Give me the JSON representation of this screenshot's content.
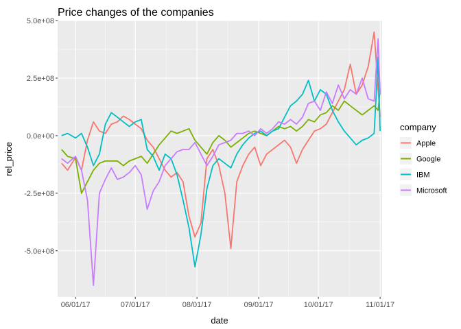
{
  "chart_data": {
    "type": "line",
    "title": "Price changes of the companies",
    "xlabel": "date",
    "ylabel": "rel_price",
    "xlim": [
      "2017-05-23",
      "2017-11-02"
    ],
    "ylim": [
      -700000000,
      500000000
    ],
    "x_ticks": [
      "06/01/17",
      "07/01/17",
      "08/01/17",
      "09/01/17",
      "10/01/17",
      "11/01/17"
    ],
    "y_ticks": [
      "5.0e+08",
      "2.5e+08",
      "0.0e+00",
      "-2.5e+08",
      "-5.0e+08"
    ],
    "y_tick_values": [
      500000000,
      250000000,
      0,
      -250000000,
      -500000000
    ],
    "grid": true,
    "legend": {
      "title": "company",
      "position": "right"
    },
    "colors": {
      "panel": "#ebebeb",
      "grid": "#ffffff"
    },
    "series": [
      {
        "name": "Apple",
        "color": "#F8766D",
        "points": [
          [
            "2017-05-25",
            -120000000
          ],
          [
            "2017-05-28",
            -150000000
          ],
          [
            "2017-06-01",
            -95000000
          ],
          [
            "2017-06-04",
            -150000000
          ],
          [
            "2017-06-07",
            -20000000
          ],
          [
            "2017-06-10",
            60000000
          ],
          [
            "2017-06-13",
            20000000
          ],
          [
            "2017-06-16",
            10000000
          ],
          [
            "2017-06-19",
            50000000
          ],
          [
            "2017-06-22",
            60000000
          ],
          [
            "2017-06-25",
            85000000
          ],
          [
            "2017-06-28",
            70000000
          ],
          [
            "2017-07-01",
            50000000
          ],
          [
            "2017-07-04",
            30000000
          ],
          [
            "2017-07-07",
            -20000000
          ],
          [
            "2017-07-10",
            -50000000
          ],
          [
            "2017-07-13",
            -100000000
          ],
          [
            "2017-07-16",
            -150000000
          ],
          [
            "2017-07-19",
            -180000000
          ],
          [
            "2017-07-22",
            -160000000
          ],
          [
            "2017-07-25",
            -200000000
          ],
          [
            "2017-07-28",
            -350000000
          ],
          [
            "2017-07-31",
            -440000000
          ],
          [
            "2017-08-03",
            -380000000
          ],
          [
            "2017-08-06",
            -100000000
          ],
          [
            "2017-08-09",
            -60000000
          ],
          [
            "2017-08-12",
            -130000000
          ],
          [
            "2017-08-15",
            -250000000
          ],
          [
            "2017-08-18",
            -490000000
          ],
          [
            "2017-08-21",
            -200000000
          ],
          [
            "2017-08-24",
            -130000000
          ],
          [
            "2017-08-27",
            -80000000
          ],
          [
            "2017-08-30",
            -50000000
          ],
          [
            "2017-09-02",
            -130000000
          ],
          [
            "2017-09-05",
            -80000000
          ],
          [
            "2017-09-08",
            -60000000
          ],
          [
            "2017-09-11",
            -40000000
          ],
          [
            "2017-09-14",
            -20000000
          ],
          [
            "2017-09-17",
            -50000000
          ],
          [
            "2017-09-20",
            -120000000
          ],
          [
            "2017-09-23",
            -60000000
          ],
          [
            "2017-09-26",
            -20000000
          ],
          [
            "2017-09-29",
            20000000
          ],
          [
            "2017-10-02",
            30000000
          ],
          [
            "2017-10-05",
            50000000
          ],
          [
            "2017-10-08",
            100000000
          ],
          [
            "2017-10-11",
            150000000
          ],
          [
            "2017-10-14",
            200000000
          ],
          [
            "2017-10-17",
            310000000
          ],
          [
            "2017-10-20",
            180000000
          ],
          [
            "2017-10-23",
            220000000
          ],
          [
            "2017-10-26",
            300000000
          ],
          [
            "2017-10-29",
            450000000
          ],
          [
            "2017-10-31",
            200000000
          ],
          [
            "2017-11-01",
            80000000
          ]
        ]
      },
      {
        "name": "Google",
        "color": "#7CAE00",
        "points": [
          [
            "2017-05-25",
            -60000000
          ],
          [
            "2017-05-28",
            -90000000
          ],
          [
            "2017-06-01",
            -100000000
          ],
          [
            "2017-06-04",
            -250000000
          ],
          [
            "2017-06-07",
            -200000000
          ],
          [
            "2017-06-10",
            -150000000
          ],
          [
            "2017-06-13",
            -120000000
          ],
          [
            "2017-06-16",
            -110000000
          ],
          [
            "2017-06-19",
            -110000000
          ],
          [
            "2017-06-22",
            -110000000
          ],
          [
            "2017-06-25",
            -130000000
          ],
          [
            "2017-06-28",
            -110000000
          ],
          [
            "2017-07-01",
            -100000000
          ],
          [
            "2017-07-04",
            -90000000
          ],
          [
            "2017-07-07",
            -120000000
          ],
          [
            "2017-07-10",
            -80000000
          ],
          [
            "2017-07-13",
            -40000000
          ],
          [
            "2017-07-16",
            -10000000
          ],
          [
            "2017-07-19",
            20000000
          ],
          [
            "2017-07-22",
            10000000
          ],
          [
            "2017-07-25",
            20000000
          ],
          [
            "2017-07-28",
            30000000
          ],
          [
            "2017-07-31",
            -20000000
          ],
          [
            "2017-08-03",
            -50000000
          ],
          [
            "2017-08-06",
            -80000000
          ],
          [
            "2017-08-09",
            -30000000
          ],
          [
            "2017-08-12",
            0
          ],
          [
            "2017-08-15",
            -20000000
          ],
          [
            "2017-08-18",
            -50000000
          ],
          [
            "2017-08-21",
            -30000000
          ],
          [
            "2017-08-24",
            -10000000
          ],
          [
            "2017-08-27",
            10000000
          ],
          [
            "2017-08-30",
            20000000
          ],
          [
            "2017-09-02",
            10000000
          ],
          [
            "2017-09-05",
            0
          ],
          [
            "2017-09-08",
            20000000
          ],
          [
            "2017-09-11",
            40000000
          ],
          [
            "2017-09-14",
            30000000
          ],
          [
            "2017-09-17",
            40000000
          ],
          [
            "2017-09-20",
            20000000
          ],
          [
            "2017-09-23",
            40000000
          ],
          [
            "2017-09-26",
            70000000
          ],
          [
            "2017-09-29",
            60000000
          ],
          [
            "2017-10-02",
            90000000
          ],
          [
            "2017-10-05",
            100000000
          ],
          [
            "2017-10-08",
            130000000
          ],
          [
            "2017-10-11",
            110000000
          ],
          [
            "2017-10-14",
            150000000
          ],
          [
            "2017-10-17",
            130000000
          ],
          [
            "2017-10-20",
            110000000
          ],
          [
            "2017-10-23",
            90000000
          ],
          [
            "2017-10-26",
            110000000
          ],
          [
            "2017-10-29",
            130000000
          ],
          [
            "2017-10-31",
            110000000
          ],
          [
            "2017-11-01",
            200000000
          ]
        ]
      },
      {
        "name": "IBM",
        "color": "#00BFC4",
        "points": [
          [
            "2017-05-25",
            0
          ],
          [
            "2017-05-28",
            10000000
          ],
          [
            "2017-06-01",
            -10000000
          ],
          [
            "2017-06-04",
            10000000
          ],
          [
            "2017-06-07",
            -50000000
          ],
          [
            "2017-06-10",
            -130000000
          ],
          [
            "2017-06-13",
            -80000000
          ],
          [
            "2017-06-16",
            50000000
          ],
          [
            "2017-06-19",
            100000000
          ],
          [
            "2017-06-22",
            80000000
          ],
          [
            "2017-06-25",
            60000000
          ],
          [
            "2017-06-28",
            40000000
          ],
          [
            "2017-07-01",
            60000000
          ],
          [
            "2017-07-04",
            70000000
          ],
          [
            "2017-07-07",
            -60000000
          ],
          [
            "2017-07-10",
            -90000000
          ],
          [
            "2017-07-13",
            -150000000
          ],
          [
            "2017-07-16",
            -80000000
          ],
          [
            "2017-07-19",
            -100000000
          ],
          [
            "2017-07-22",
            -170000000
          ],
          [
            "2017-07-25",
            -280000000
          ],
          [
            "2017-07-28",
            -400000000
          ],
          [
            "2017-07-31",
            -570000000
          ],
          [
            "2017-08-03",
            -430000000
          ],
          [
            "2017-08-06",
            -230000000
          ],
          [
            "2017-08-09",
            -130000000
          ],
          [
            "2017-08-12",
            -100000000
          ],
          [
            "2017-08-15",
            -120000000
          ],
          [
            "2017-08-18",
            -140000000
          ],
          [
            "2017-08-21",
            -80000000
          ],
          [
            "2017-08-24",
            -40000000
          ],
          [
            "2017-08-27",
            -10000000
          ],
          [
            "2017-08-30",
            10000000
          ],
          [
            "2017-09-02",
            20000000
          ],
          [
            "2017-09-05",
            0
          ],
          [
            "2017-09-08",
            20000000
          ],
          [
            "2017-09-11",
            30000000
          ],
          [
            "2017-09-14",
            80000000
          ],
          [
            "2017-09-17",
            130000000
          ],
          [
            "2017-09-20",
            150000000
          ],
          [
            "2017-09-23",
            180000000
          ],
          [
            "2017-09-26",
            240000000
          ],
          [
            "2017-09-29",
            150000000
          ],
          [
            "2017-10-02",
            200000000
          ],
          [
            "2017-10-05",
            180000000
          ],
          [
            "2017-10-08",
            110000000
          ],
          [
            "2017-10-11",
            60000000
          ],
          [
            "2017-10-14",
            20000000
          ],
          [
            "2017-10-17",
            -10000000
          ],
          [
            "2017-10-20",
            -40000000
          ],
          [
            "2017-10-23",
            -20000000
          ],
          [
            "2017-10-26",
            -10000000
          ],
          [
            "2017-10-29",
            10000000
          ],
          [
            "2017-10-31",
            340000000
          ],
          [
            "2017-11-01",
            20000000
          ]
        ]
      },
      {
        "name": "Microsoft",
        "color": "#C77CFF",
        "points": [
          [
            "2017-05-25",
            -100000000
          ],
          [
            "2017-05-28",
            -120000000
          ],
          [
            "2017-06-01",
            -90000000
          ],
          [
            "2017-06-04",
            -150000000
          ],
          [
            "2017-06-07",
            -280000000
          ],
          [
            "2017-06-10",
            -650000000
          ],
          [
            "2017-06-13",
            -250000000
          ],
          [
            "2017-06-16",
            -190000000
          ],
          [
            "2017-06-19",
            -140000000
          ],
          [
            "2017-06-22",
            -190000000
          ],
          [
            "2017-06-25",
            -180000000
          ],
          [
            "2017-06-28",
            -160000000
          ],
          [
            "2017-07-01",
            -130000000
          ],
          [
            "2017-07-04",
            -170000000
          ],
          [
            "2017-07-07",
            -320000000
          ],
          [
            "2017-07-10",
            -240000000
          ],
          [
            "2017-07-13",
            -200000000
          ],
          [
            "2017-07-16",
            -130000000
          ],
          [
            "2017-07-19",
            -100000000
          ],
          [
            "2017-07-22",
            -70000000
          ],
          [
            "2017-07-25",
            -60000000
          ],
          [
            "2017-07-28",
            -60000000
          ],
          [
            "2017-07-31",
            -30000000
          ],
          [
            "2017-08-03",
            -80000000
          ],
          [
            "2017-08-06",
            -130000000
          ],
          [
            "2017-08-09",
            -90000000
          ],
          [
            "2017-08-12",
            -40000000
          ],
          [
            "2017-08-15",
            -30000000
          ],
          [
            "2017-08-18",
            -20000000
          ],
          [
            "2017-08-21",
            10000000
          ],
          [
            "2017-08-24",
            10000000
          ],
          [
            "2017-08-27",
            20000000
          ],
          [
            "2017-08-30",
            0
          ],
          [
            "2017-09-02",
            30000000
          ],
          [
            "2017-09-05",
            10000000
          ],
          [
            "2017-09-08",
            30000000
          ],
          [
            "2017-09-11",
            60000000
          ],
          [
            "2017-09-14",
            50000000
          ],
          [
            "2017-09-17",
            70000000
          ],
          [
            "2017-09-20",
            50000000
          ],
          [
            "2017-09-23",
            80000000
          ],
          [
            "2017-09-26",
            140000000
          ],
          [
            "2017-09-29",
            150000000
          ],
          [
            "2017-10-02",
            110000000
          ],
          [
            "2017-10-05",
            190000000
          ],
          [
            "2017-10-08",
            140000000
          ],
          [
            "2017-10-11",
            220000000
          ],
          [
            "2017-10-14",
            160000000
          ],
          [
            "2017-10-17",
            200000000
          ],
          [
            "2017-10-20",
            180000000
          ],
          [
            "2017-10-23",
            250000000
          ],
          [
            "2017-10-26",
            160000000
          ],
          [
            "2017-10-29",
            150000000
          ],
          [
            "2017-10-31",
            420000000
          ],
          [
            "2017-11-01",
            180000000
          ]
        ]
      }
    ]
  }
}
